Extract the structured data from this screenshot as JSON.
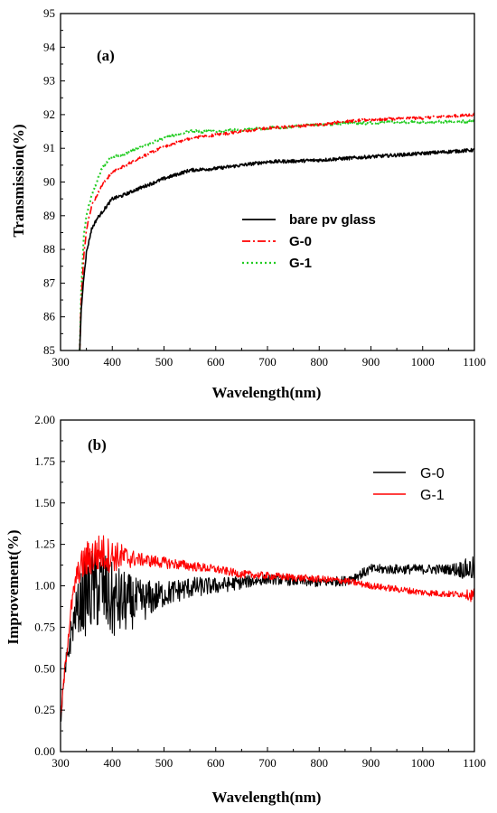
{
  "chart_data": [
    {
      "type": "line",
      "panel_label": "(a)",
      "xlabel": "Wavelength(nm)",
      "ylabel": "Transmission(%)",
      "xlim": [
        300,
        1100
      ],
      "ylim": [
        85,
        95
      ],
      "x_ticks": [
        "300",
        "400",
        "500",
        "600",
        "700",
        "800",
        "900",
        "1000",
        "1100"
      ],
      "y_ticks": [
        "85",
        "86",
        "87",
        "88",
        "89",
        "90",
        "91",
        "92",
        "93",
        "94",
        "95"
      ],
      "legend_position": "center-right",
      "grid": false,
      "series": [
        {
          "name": "bare pv glass",
          "color": "#000000",
          "style": "solid",
          "noise": 0.05,
          "x": [
            337,
            340,
            345,
            350,
            360,
            370,
            380,
            390,
            400,
            420,
            450,
            500,
            550,
            600,
            650,
            700,
            750,
            800,
            850,
            900,
            950,
            1000,
            1050,
            1100
          ],
          "y": [
            85.0,
            86.2,
            87.2,
            87.9,
            88.6,
            88.9,
            89.1,
            89.3,
            89.5,
            89.6,
            89.8,
            90.1,
            90.35,
            90.4,
            90.5,
            90.6,
            90.62,
            90.65,
            90.7,
            90.75,
            90.8,
            90.85,
            90.9,
            90.95
          ]
        },
        {
          "name": "G-0",
          "color": "#ff0000",
          "style": "dashdot",
          "noise": 0.04,
          "x": [
            337,
            340,
            345,
            350,
            360,
            370,
            380,
            390,
            400,
            420,
            450,
            500,
            550,
            600,
            650,
            700,
            750,
            800,
            850,
            900,
            950,
            1000,
            1050,
            1100
          ],
          "y": [
            85.0,
            86.5,
            87.8,
            88.6,
            89.3,
            89.6,
            89.9,
            90.1,
            90.3,
            90.45,
            90.7,
            91.05,
            91.3,
            91.4,
            91.5,
            91.6,
            91.65,
            91.7,
            91.8,
            91.85,
            91.88,
            91.9,
            91.95,
            92.0
          ]
        },
        {
          "name": "G-1",
          "color": "#22cc22",
          "style": "dotted",
          "noise": 0.04,
          "x": [
            337,
            340,
            345,
            350,
            360,
            370,
            380,
            390,
            400,
            420,
            450,
            500,
            550,
            600,
            650,
            700,
            750,
            800,
            850,
            900,
            950,
            1000,
            1050,
            1100
          ],
          "y": [
            85.0,
            86.8,
            88.4,
            89.0,
            89.6,
            90.0,
            90.4,
            90.6,
            90.75,
            90.8,
            91.0,
            91.3,
            91.5,
            91.5,
            91.55,
            91.6,
            91.65,
            91.7,
            91.75,
            91.75,
            91.78,
            91.78,
            91.8,
            91.8
          ]
        }
      ]
    },
    {
      "type": "line",
      "panel_label": "(b)",
      "xlabel": "Wavelength(nm)",
      "ylabel": "Improvement(%)",
      "xlim": [
        300,
        1100
      ],
      "ylim": [
        0.0,
        2.0
      ],
      "x_ticks": [
        "300",
        "400",
        "500",
        "600",
        "700",
        "800",
        "900",
        "1000",
        "1100"
      ],
      "y_ticks": [
        "0.00",
        "0.25",
        "0.50",
        "0.75",
        "1.00",
        "1.25",
        "1.50",
        "1.75",
        "2.00"
      ],
      "legend_position": "top-right",
      "grid": false,
      "series": [
        {
          "name": "G-0",
          "color": "#000000",
          "style": "solid",
          "noise": [
            [
              300,
              0.06
            ],
            [
              330,
              0.12
            ],
            [
              350,
              0.26
            ],
            [
              400,
              0.24
            ],
            [
              450,
              0.14
            ],
            [
              500,
              0.08
            ],
            [
              600,
              0.05
            ],
            [
              700,
              0.03
            ],
            [
              850,
              0.03
            ],
            [
              1050,
              0.03
            ],
            [
              1100,
              0.08
            ]
          ],
          "x": [
            300,
            310,
            320,
            330,
            340,
            350,
            360,
            380,
            400,
            450,
            500,
            550,
            600,
            650,
            700,
            750,
            800,
            850,
            880,
            900,
            950,
            1000,
            1050,
            1080,
            1100
          ],
          "y": [
            0.2,
            0.5,
            0.7,
            0.85,
            0.9,
            0.95,
            0.97,
            0.98,
            0.9,
            0.9,
            0.95,
            0.99,
            1.0,
            1.02,
            1.04,
            1.03,
            1.02,
            1.03,
            1.07,
            1.1,
            1.1,
            1.1,
            1.1,
            1.1,
            1.1
          ]
        },
        {
          "name": "G-1",
          "color": "#ff0000",
          "style": "solid",
          "noise": [
            [
              300,
              0.04
            ],
            [
              330,
              0.06
            ],
            [
              350,
              0.12
            ],
            [
              380,
              0.12
            ],
            [
              420,
              0.08
            ],
            [
              450,
              0.04
            ],
            [
              600,
              0.025
            ],
            [
              900,
              0.02
            ],
            [
              1080,
              0.02
            ],
            [
              1100,
              0.05
            ]
          ],
          "x": [
            300,
            310,
            320,
            330,
            340,
            350,
            360,
            380,
            400,
            450,
            500,
            550,
            600,
            650,
            700,
            750,
            800,
            850,
            900,
            950,
            1000,
            1050,
            1080,
            1100
          ],
          "y": [
            0.2,
            0.55,
            0.85,
            1.05,
            1.12,
            1.15,
            1.18,
            1.2,
            1.18,
            1.16,
            1.14,
            1.12,
            1.1,
            1.07,
            1.06,
            1.05,
            1.04,
            1.03,
            1.0,
            0.98,
            0.96,
            0.95,
            0.95,
            0.94
          ]
        }
      ]
    }
  ]
}
